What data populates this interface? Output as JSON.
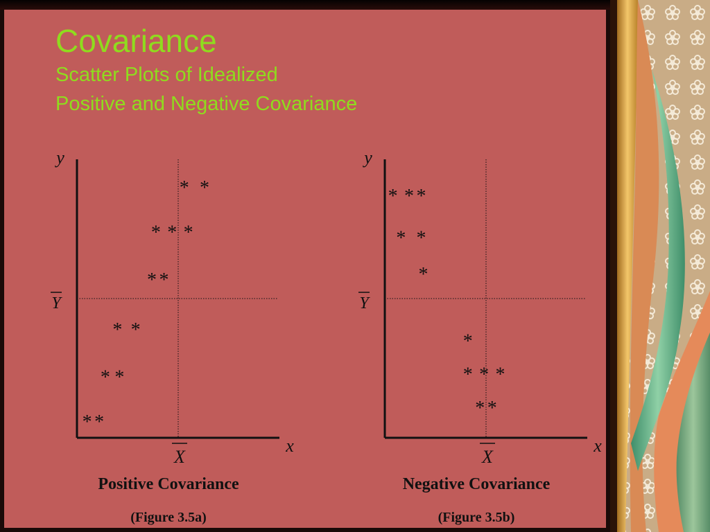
{
  "slide": {
    "title": "Covariance",
    "subtitle_line1": "Scatter Plots of Idealized",
    "subtitle_line2": "Positive and Negative Covariance"
  },
  "colors": {
    "background": "#c05c5a",
    "title": "#8fdc1e",
    "ink": "#111111"
  },
  "chart_data": [
    {
      "type": "scatter",
      "title": "Positive Covariance",
      "figure_label": "(Figure 3.5a)",
      "xlabel": "x",
      "ylabel": "y",
      "x_mean_label": "X",
      "y_mean_label": "Y",
      "marker": "*",
      "xlim": [
        0,
        10
      ],
      "ylim": [
        0,
        10
      ],
      "x_mean": 5,
      "y_mean": 5,
      "points": [
        {
          "x": 0.5,
          "y": 0.7
        },
        {
          "x": 1.1,
          "y": 0.7
        },
        {
          "x": 1.4,
          "y": 2.3
        },
        {
          "x": 2.1,
          "y": 2.3
        },
        {
          "x": 2.0,
          "y": 4.0
        },
        {
          "x": 2.9,
          "y": 4.0
        },
        {
          "x": 3.7,
          "y": 5.8
        },
        {
          "x": 4.3,
          "y": 5.8
        },
        {
          "x": 3.9,
          "y": 7.5
        },
        {
          "x": 4.7,
          "y": 7.5
        },
        {
          "x": 5.5,
          "y": 7.5
        },
        {
          "x": 5.3,
          "y": 9.1
        },
        {
          "x": 6.3,
          "y": 9.1
        }
      ]
    },
    {
      "type": "scatter",
      "title": "Negative Covariance",
      "figure_label": "(Figure 3.5b)",
      "xlabel": "x",
      "ylabel": "y",
      "x_mean_label": "X",
      "y_mean_label": "Y",
      "marker": "*",
      "xlim": [
        0,
        10
      ],
      "ylim": [
        0,
        10
      ],
      "x_mean": 5,
      "y_mean": 5,
      "points": [
        {
          "x": 0.4,
          "y": 8.8
        },
        {
          "x": 1.2,
          "y": 8.8
        },
        {
          "x": 1.8,
          "y": 8.8
        },
        {
          "x": 0.8,
          "y": 7.3
        },
        {
          "x": 1.8,
          "y": 7.3
        },
        {
          "x": 1.9,
          "y": 6.0
        },
        {
          "x": 4.1,
          "y": 3.6
        },
        {
          "x": 4.1,
          "y": 2.4
        },
        {
          "x": 4.9,
          "y": 2.4
        },
        {
          "x": 5.7,
          "y": 2.4
        },
        {
          "x": 4.7,
          "y": 1.2
        },
        {
          "x": 5.3,
          "y": 1.2
        }
      ]
    }
  ]
}
